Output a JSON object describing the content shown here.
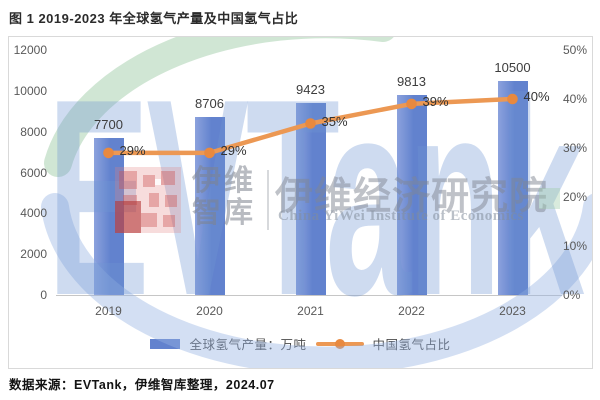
{
  "title": "图 1 2019-2023 年全球氢气产量及中国氢气占比",
  "footer": "数据来源：EVTank，伊维智库整理，2024.07",
  "legend": {
    "bar_label": "全球氢气产量：万吨",
    "line_label": "中国氢气占比"
  },
  "watermark": {
    "brand": "EVTank",
    "cn_short_line1": "伊维",
    "cn_short_line2": "智库",
    "cn_full": "伊维经济研究院",
    "en_full": "China YiWei Institute of Economics"
  },
  "colors": {
    "bar": "#6282CE",
    "bar_light": "#8CA2DD",
    "line": "#EC9853",
    "marker": "#E8893F",
    "axis_text": "#595959",
    "ring_blue": "rgba(150,178,226,0.42)",
    "ring_green": "rgba(150,200,160,0.45)"
  },
  "chart_data": {
    "type": "bar+line",
    "title": "2019-2023 年全球氢气产量及中国氢气占比",
    "categories": [
      "2019",
      "2020",
      "2021",
      "2022",
      "2023"
    ],
    "series": [
      {
        "name": "全球氢气产量：万吨",
        "type": "bar",
        "axis": "left",
        "values": [
          7700,
          8706,
          9423,
          9813,
          10500
        ],
        "value_labels": [
          "7700",
          "8706",
          "9423",
          "9813",
          "10500"
        ]
      },
      {
        "name": "中国氢气占比",
        "type": "line",
        "axis": "right",
        "unit": "%",
        "values": [
          29,
          29,
          35,
          39,
          40
        ],
        "labels": [
          "29%",
          "29%",
          "35%",
          "39%",
          "40%"
        ]
      }
    ],
    "left_axis": {
      "min": 0,
      "max": 12000,
      "step": 2000,
      "ticks": [
        "0",
        "2000",
        "4000",
        "6000",
        "8000",
        "10000",
        "12000"
      ]
    },
    "right_axis": {
      "min": 0,
      "max": 50,
      "step": 10,
      "ticks": [
        "0%",
        "10%",
        "20%",
        "30%",
        "40%",
        "50%"
      ]
    },
    "grid": false,
    "legend_position": "bottom"
  }
}
